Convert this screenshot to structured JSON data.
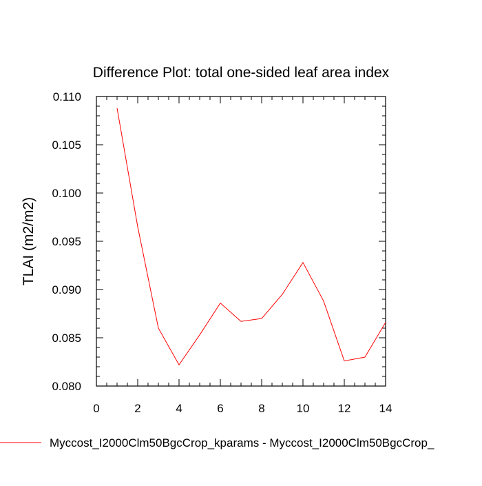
{
  "chart_data": {
    "type": "line",
    "title": "Difference Plot: total one-sided leaf area index",
    "xlabel": "",
    "ylabel": "TLAI  (m2/m2)",
    "xlim": [
      0,
      14
    ],
    "ylim": [
      0.08,
      0.11
    ],
    "x_ticks": [
      "0",
      "2",
      "4",
      "6",
      "8",
      "10",
      "12",
      "14"
    ],
    "y_ticks": [
      "0.080",
      "0.085",
      "0.090",
      "0.095",
      "0.100",
      "0.105",
      "0.110"
    ],
    "grid": false,
    "series": [
      {
        "name": "Myccost_I2000Clm50BgcCrop_kparams - Myccost_I2000Clm50BgcCrop_",
        "color": "#ff0000",
        "x": [
          1,
          2,
          3,
          4,
          5,
          6,
          7,
          8,
          9,
          10,
          11,
          12,
          13,
          14
        ],
        "y": [
          0.1088,
          0.0965,
          0.086,
          0.0822,
          0.0853,
          0.0886,
          0.0867,
          0.087,
          0.0895,
          0.0928,
          0.0888,
          0.0826,
          0.083,
          0.0866
        ]
      }
    ]
  }
}
